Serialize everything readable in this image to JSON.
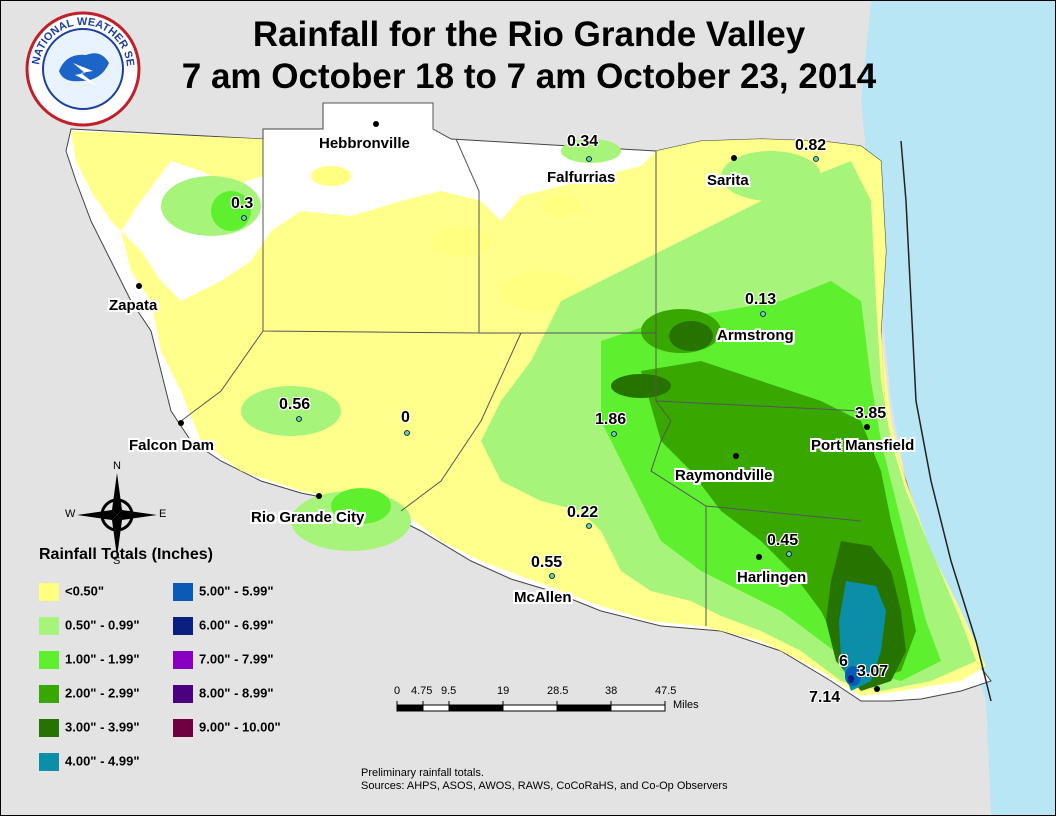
{
  "title_line1": "Rainfall for the Rio Grande Valley",
  "title_line2": "7 am October 18 to 7 am October 23, 2014",
  "logo_text": "NATIONAL WEATHER SERVICE",
  "cities": {
    "hebbronville": "Hebbronville",
    "falfurrias": "Falfurrias",
    "sarita": "Sarita",
    "zapata": "Zapata",
    "armstrong": "Armstrong",
    "falcon_dam": "Falcon Dam",
    "port_mansfield": "Port Mansfield",
    "raymondville": "Raymondville",
    "rio_grande_city": "Rio Grande City",
    "harlingen": "Harlingen",
    "mcallen": "McAllen"
  },
  "rain_values": {
    "falfurrias": "0.34",
    "sarita": "0.82",
    "zapata_north": "0.3",
    "armstrong": "0.13",
    "west": "0.56",
    "center": "0",
    "edcouch": "1.86",
    "port_mansfield": "3.85",
    "south": "0.22",
    "harlingen": "0.45",
    "mcallen": "0.55",
    "brownsville_a": "6",
    "brownsville_b": "3.07",
    "brownsville_c": "7.14"
  },
  "compass": {
    "n": "N",
    "s": "S",
    "e": "E",
    "w": "W"
  },
  "legend": {
    "title": "Rainfall Totals (Inches)",
    "items": [
      {
        "label": "<0.50\"",
        "color": "#ffff80"
      },
      {
        "label": "0.50\" - 0.99\"",
        "color": "#a6f57a"
      },
      {
        "label": "1.00\" - 1.99\"",
        "color": "#5ef02e"
      },
      {
        "label": "2.00\" - 2.99\"",
        "color": "#38a800"
      },
      {
        "label": "3.00\" - 3.99\"",
        "color": "#267300"
      },
      {
        "label": "4.00\" - 4.99\"",
        "color": "#0b8fa8"
      },
      {
        "label": "5.00\" - 5.99\"",
        "color": "#0a5bb5"
      },
      {
        "label": "6.00\" - 6.99\"",
        "color": "#0a1f80"
      },
      {
        "label": "7.00\" - 7.99\"",
        "color": "#8a00c2"
      },
      {
        "label": "8.00\" - 8.99\"",
        "color": "#4b0080"
      },
      {
        "label": "9.00\" - 10.00\"",
        "color": "#6e0040"
      }
    ]
  },
  "scale_bar": {
    "ticks": [
      "0",
      "4.75",
      "9.5",
      "19",
      "28.5",
      "38",
      "47.5"
    ],
    "unit": "Miles"
  },
  "notes": {
    "line1": "Preliminary rainfall totals.",
    "line2": "Sources: AHPS, ASOS, AWOS, RAWS, CoCoRaHS, and Co-Op Observers"
  }
}
